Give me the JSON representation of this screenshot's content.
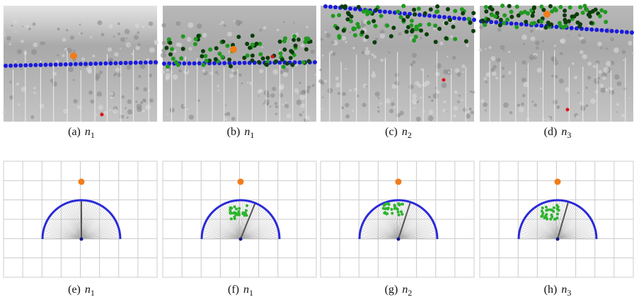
{
  "panels": [
    {
      "label": "(a)",
      "symbol": "n",
      "subscript": "1"
    },
    {
      "label": "(b)",
      "symbol": "n",
      "subscript": "1"
    },
    {
      "label": "(c)",
      "symbol": "n",
      "subscript": "2"
    },
    {
      "label": "(d)",
      "symbol": "n",
      "subscript": "3"
    },
    {
      "label": "(e)",
      "symbol": "n",
      "subscript": "1"
    },
    {
      "label": "(f)",
      "symbol": "n",
      "subscript": "1"
    },
    {
      "label": "(g)",
      "symbol": "n",
      "subscript": "2"
    },
    {
      "label": "(h)",
      "symbol": "n",
      "subscript": "3"
    }
  ]
}
